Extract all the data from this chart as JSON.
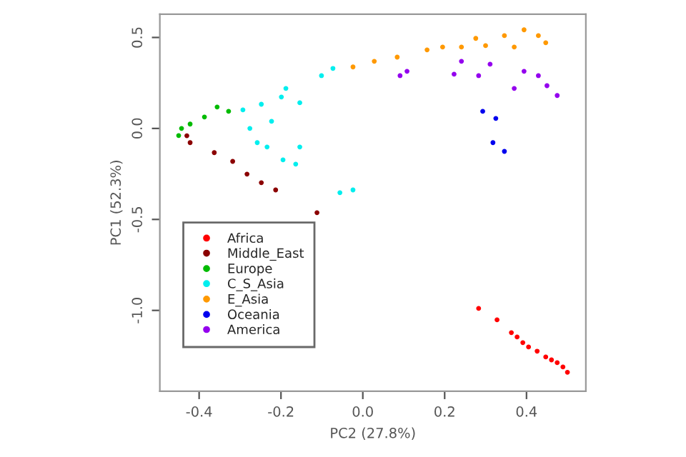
{
  "chart_data": {
    "type": "scatter",
    "xlabel": "PC2 (27.8%)",
    "ylabel": "PC1 (52.3%)",
    "xlim": [
      -0.496,
      0.545
    ],
    "ylim": [
      -1.444,
      0.628
    ],
    "xticks": [
      -0.4,
      -0.2,
      {
        "value": 0,
        "label": "0.0"
      },
      0.2,
      0.4
    ],
    "yticks": [
      0.5,
      {
        "value": 0,
        "label": "0.0"
      },
      -0.5,
      {
        "value": -1,
        "label": "-1.0"
      }
    ],
    "grid": false,
    "legend": "bottom left",
    "marker": "circle",
    "series": [
      {
        "name": "Africa",
        "color": "#ff0000",
        "x": [
          0.283,
          0.328,
          0.363,
          0.377,
          0.391,
          0.405,
          0.426,
          0.447,
          0.461,
          0.475,
          0.489,
          0.5
        ],
        "values": [
          -0.989,
          -1.052,
          -1.122,
          -1.146,
          -1.177,
          -1.201,
          -1.224,
          -1.256,
          -1.272,
          -1.287,
          -1.311,
          -1.34
        ]
      },
      {
        "name": "Middle_East",
        "color": "#8b0000",
        "x": [
          -0.43,
          -0.422,
          -0.363,
          -0.318,
          -0.283,
          -0.248,
          -0.213,
          -0.112
        ],
        "values": [
          -0.04,
          -0.078,
          -0.133,
          -0.181,
          -0.251,
          -0.298,
          -0.338,
          -0.463
        ]
      },
      {
        "name": "Europe",
        "color": "#00bb00",
        "x": [
          -0.45,
          -0.443,
          -0.422,
          -0.387,
          -0.356,
          -0.328
        ],
        "values": [
          -0.039,
          0.0,
          0.024,
          0.063,
          0.118,
          0.094
        ]
      },
      {
        "name": "C_S_Asia",
        "color": "#00eeee",
        "x": [
          -0.293,
          -0.276,
          -0.248,
          -0.223,
          -0.199,
          -0.188,
          -0.154,
          -0.258,
          -0.234,
          -0.195,
          -0.164,
          -0.154,
          -0.056,
          -0.024,
          -0.101,
          -0.073
        ],
        "values": [
          0.102,
          0.0,
          0.133,
          0.039,
          0.173,
          0.22,
          0.141,
          -0.078,
          -0.102,
          -0.173,
          -0.196,
          -0.102,
          -0.353,
          -0.338,
          0.29,
          0.33
        ]
      },
      {
        "name": "E_Asia",
        "color": "#ff9900",
        "x": [
          -0.024,
          0.028,
          0.084,
          0.157,
          0.195,
          0.241,
          0.276,
          0.3,
          0.346,
          0.37,
          0.394,
          0.429,
          0.447
        ],
        "values": [
          0.338,
          0.369,
          0.392,
          0.432,
          0.447,
          0.447,
          0.495,
          0.455,
          0.51,
          0.447,
          0.542,
          0.51,
          0.471
        ]
      },
      {
        "name": "Oceania",
        "color": "#0000ee",
        "x": [
          0.293,
          0.325,
          0.318,
          0.346
        ],
        "values": [
          0.094,
          0.055,
          -0.078,
          -0.126
        ]
      },
      {
        "name": "America",
        "color": "#9400ee",
        "x": [
          0.091,
          0.108,
          0.223,
          0.241,
          0.283,
          0.311,
          0.37,
          0.394,
          0.429,
          0.45,
          0.475
        ],
        "values": [
          0.29,
          0.314,
          0.298,
          0.369,
          0.29,
          0.353,
          0.22,
          0.314,
          0.29,
          0.235,
          0.181
        ]
      }
    ]
  }
}
